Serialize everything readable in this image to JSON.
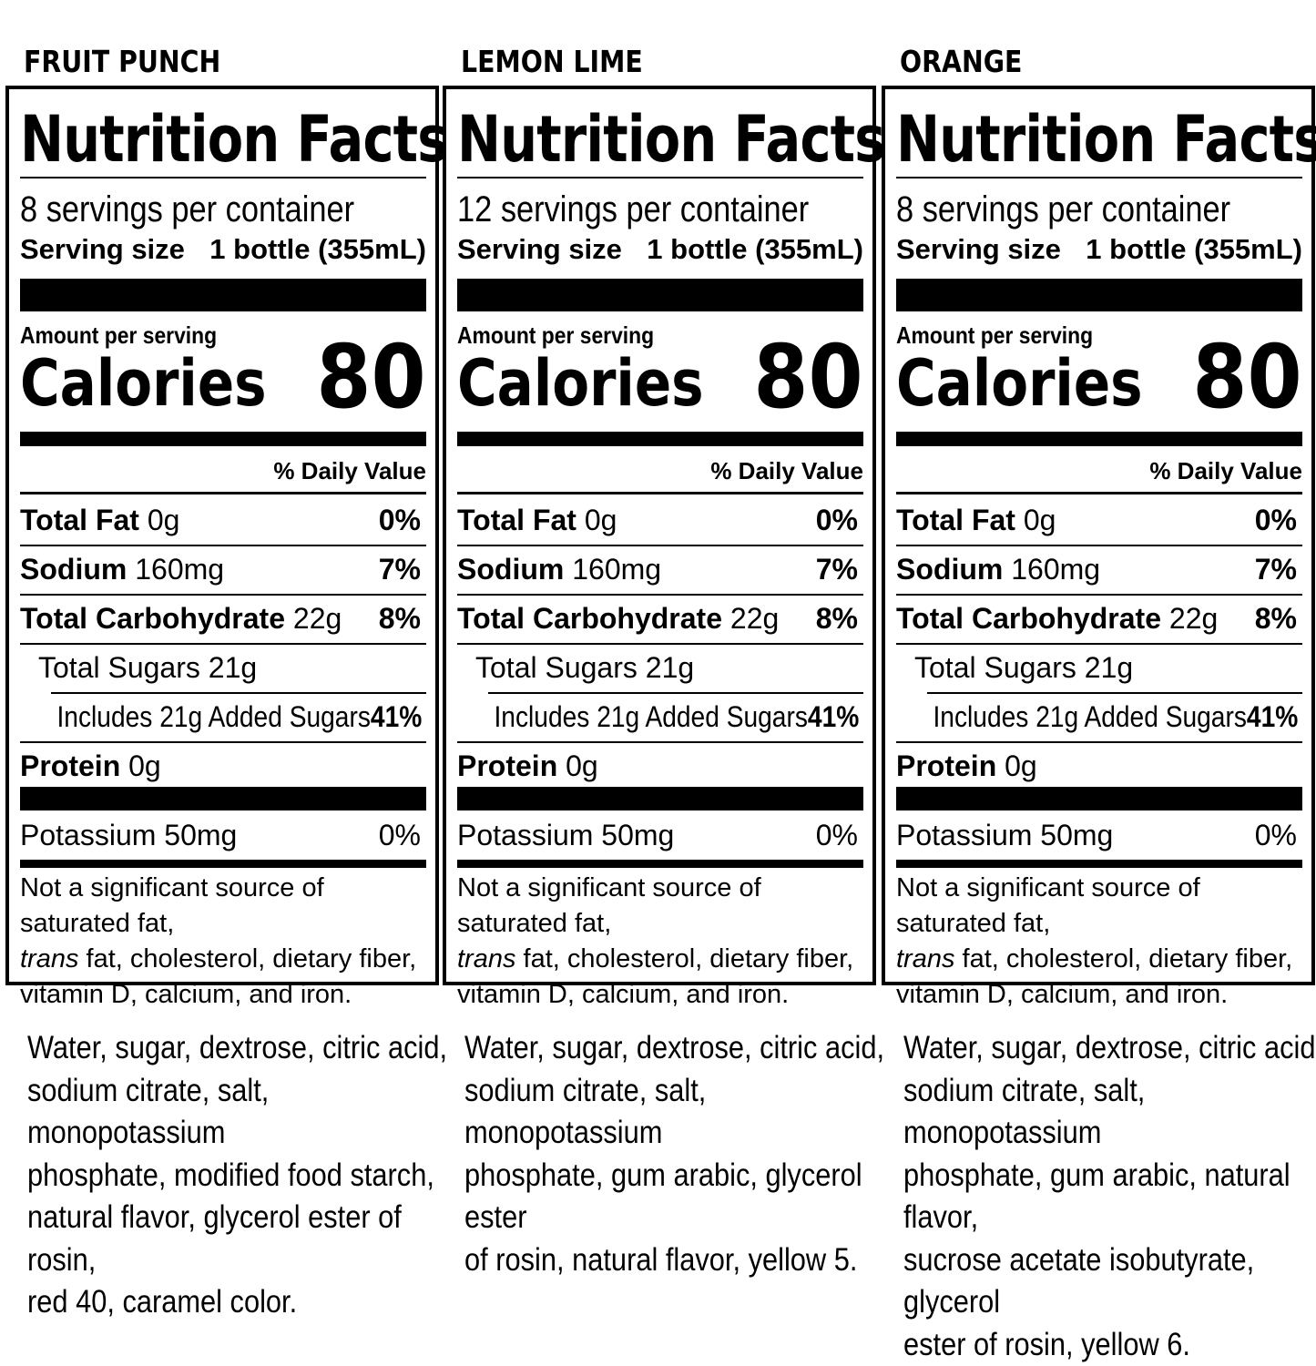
{
  "labels": [
    {
      "flavor": "FRUIT PUNCH",
      "title": "Nutrition Facts",
      "servings": "8 servings per container",
      "serving_size_label": "Serving size",
      "serving_size_value": "1 bottle (355mL)",
      "amount_per_serving": "Amount per serving",
      "calories_label": "Calories",
      "calories_value": "80",
      "daily_value_header": "% Daily Value",
      "total_fat_label": "Total Fat",
      "total_fat_amount": "0g",
      "total_fat_dv": "0%",
      "sodium_label": "Sodium",
      "sodium_amount": "160mg",
      "sodium_dv": "7%",
      "carb_label": "Total Carbohydrate",
      "carb_amount": "22g",
      "carb_dv": "8%",
      "sugars": "Total Sugars 21g",
      "added_sugars": "Includes 21g Added Sugars",
      "added_sugars_dv": "41%",
      "protein_label": "Protein",
      "protein_amount": "0g",
      "potassium": "Potassium 50mg",
      "potassium_dv": "0%",
      "footnote_1": "Not a significant source of saturated fat,",
      "footnote_trans": "trans",
      "footnote_2": " fat, cholesterol, dietary fiber,",
      "footnote_3": "vitamin D, calcium, and iron.",
      "ingredients": [
        "Water, sugar, dextrose, citric acid,",
        "sodium citrate, salt, monopotassium",
        "phosphate, modified food starch,",
        "natural flavor, glycerol ester of rosin,",
        "red 40, caramel color."
      ]
    },
    {
      "flavor": "LEMON LIME",
      "title": "Nutrition Facts",
      "servings": "12 servings per container",
      "serving_size_label": "Serving size",
      "serving_size_value": "1 bottle (355mL)",
      "amount_per_serving": "Amount per serving",
      "calories_label": "Calories",
      "calories_value": "80",
      "daily_value_header": "% Daily Value",
      "total_fat_label": "Total Fat",
      "total_fat_amount": "0g",
      "total_fat_dv": "0%",
      "sodium_label": "Sodium",
      "sodium_amount": "160mg",
      "sodium_dv": "7%",
      "carb_label": "Total Carbohydrate",
      "carb_amount": "22g",
      "carb_dv": "8%",
      "sugars": "Total Sugars 21g",
      "added_sugars": "Includes 21g Added Sugars",
      "added_sugars_dv": "41%",
      "protein_label": "Protein",
      "protein_amount": "0g",
      "potassium": "Potassium 50mg",
      "potassium_dv": "0%",
      "footnote_1": "Not a significant source of saturated fat,",
      "footnote_trans": "trans",
      "footnote_2": " fat, cholesterol, dietary fiber,",
      "footnote_3": "vitamin D, calcium, and iron.",
      "ingredients": [
        "Water, sugar, dextrose, citric acid,",
        "sodium citrate, salt, monopotassium",
        "phosphate, gum arabic, glycerol ester",
        "of rosin, natural flavor, yellow 5."
      ]
    },
    {
      "flavor": "ORANGE",
      "title": "Nutrition Facts",
      "servings": "8 servings per container",
      "serving_size_label": "Serving size",
      "serving_size_value": "1 bottle (355mL)",
      "amount_per_serving": "Amount per serving",
      "calories_label": "Calories",
      "calories_value": "80",
      "daily_value_header": "% Daily Value",
      "total_fat_label": "Total Fat",
      "total_fat_amount": "0g",
      "total_fat_dv": "0%",
      "sodium_label": "Sodium",
      "sodium_amount": "160mg",
      "sodium_dv": "7%",
      "carb_label": "Total Carbohydrate",
      "carb_amount": "22g",
      "carb_dv": "8%",
      "sugars": "Total Sugars 21g",
      "added_sugars": "Includes 21g Added Sugars",
      "added_sugars_dv": "41%",
      "protein_label": "Protein",
      "protein_amount": "0g",
      "potassium": "Potassium 50mg",
      "potassium_dv": "0%",
      "footnote_1": "Not a significant source of saturated fat,",
      "footnote_trans": "trans",
      "footnote_2": " fat, cholesterol, dietary fiber,",
      "footnote_3": "vitamin D, calcium, and iron.",
      "ingredients": [
        "Water, sugar, dextrose, citric acid,",
        "sodium citrate, salt, monopotassium",
        "phosphate, gum arabic, natural flavor,",
        "sucrose acetate isobutyrate, glycerol",
        "ester of rosin, yellow 6."
      ]
    }
  ]
}
